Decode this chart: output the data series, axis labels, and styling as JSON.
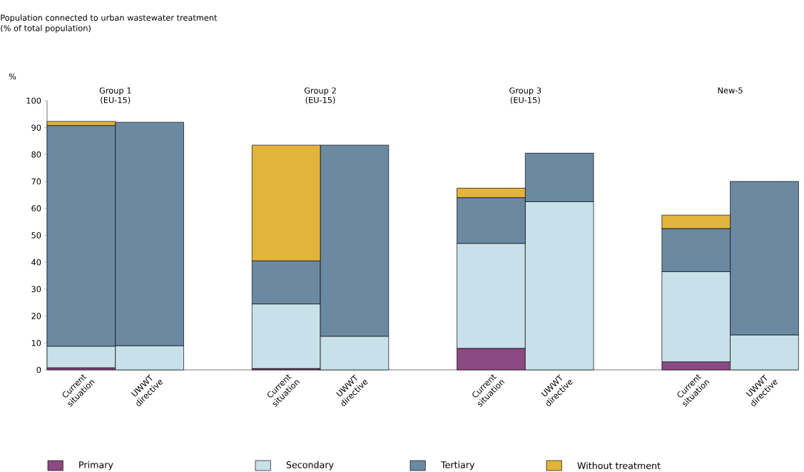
{
  "chart_data": {
    "type": "bar",
    "stacked": true,
    "title": "Population connected to urban wastewater treatment",
    "subtitle": "(% of total population)",
    "ylabel": "%",
    "categories": [
      "Current situation",
      "UWWT directive",
      null,
      "Current situation",
      "UWWT directive",
      null,
      "Current situation",
      "UWWT directive",
      null,
      "Current situation",
      "UWWT directive"
    ],
    "series": [
      {
        "name": "Primary",
        "color": "#8b4a83",
        "values": [
          0.8,
          null,
          null,
          0.5,
          null,
          null,
          8,
          null,
          null,
          3,
          null
        ]
      },
      {
        "name": "Secondary",
        "color": "#c8e0ea",
        "values": [
          8,
          9,
          null,
          24,
          12.5,
          null,
          39,
          62.5,
          null,
          33.5,
          13
        ]
      },
      {
        "name": "Tertiary",
        "color": "#6b8aa2",
        "values": [
          82,
          83,
          null,
          16,
          71,
          null,
          17,
          18,
          null,
          16,
          57
        ]
      },
      {
        "name": "Without treatment",
        "color": "#e2b43b",
        "values": [
          1.5,
          null,
          null,
          43,
          null,
          null,
          3.5,
          null,
          null,
          5,
          null
        ]
      }
    ],
    "annotations": [
      "Group 1 (EU-15)",
      "Group 2 (EU-15)",
      "Group 3 (EU-15)",
      "New-5"
    ],
    "ylim": [
      0,
      100
    ],
    "yticks": [
      0,
      10,
      20,
      30,
      40,
      50,
      60,
      70,
      80,
      90,
      100
    ],
    "legend": "bottom",
    "grid": false
  }
}
